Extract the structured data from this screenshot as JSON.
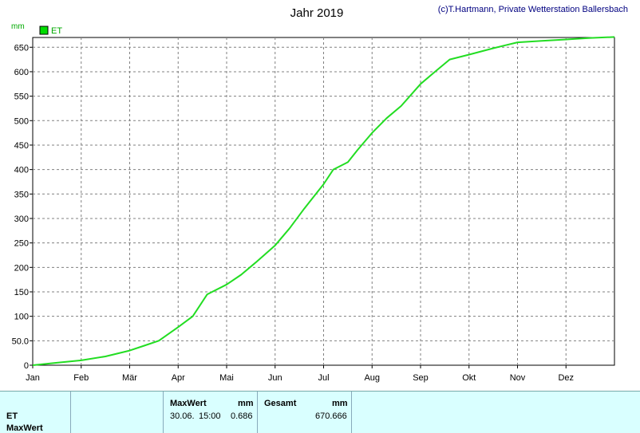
{
  "header": {
    "title": "Jahr 2019",
    "copyright": "(c)T.Hartmann, Private Wetterstation Ballersbach",
    "unit": "mm"
  },
  "legend": {
    "label": "ET",
    "color": "#00dd00"
  },
  "chart_data": {
    "type": "line",
    "title": "Jahr 2019",
    "ylabel": "mm",
    "ylim": [
      0,
      670
    ],
    "yticks": [
      0,
      50,
      100,
      150,
      200,
      250,
      300,
      350,
      400,
      450,
      500,
      550,
      600,
      650
    ],
    "ytick_labels": [
      "0",
      "50.0",
      "100",
      "150",
      "200",
      "250",
      "300",
      "350",
      "400",
      "450",
      "500",
      "550",
      "600",
      "650"
    ],
    "x_month_labels": [
      "Jan",
      "Feb",
      "Mär",
      "Apr",
      "Mai",
      "Jun",
      "Jul",
      "Aug",
      "Sep",
      "Okt",
      "Nov",
      "Dez"
    ],
    "grid": true,
    "legend_position": "top-left",
    "series": [
      {
        "name": "ET",
        "color": "#22dd22",
        "x_months": [
          0,
          0.5,
          1,
          1.5,
          2,
          2.3,
          2.6,
          3,
          3.3,
          3.6,
          4,
          4.3,
          4.6,
          5,
          5.3,
          5.6,
          6,
          6.2,
          6.5,
          6.7,
          7,
          7.3,
          7.6,
          8,
          8.3,
          8.6,
          9,
          9.5,
          10,
          10.5,
          11,
          11.5,
          12
        ],
        "values": [
          0,
          5,
          10,
          18,
          30,
          40,
          50,
          78,
          100,
          145,
          165,
          185,
          210,
          245,
          280,
          320,
          370,
          400,
          415,
          440,
          475,
          505,
          530,
          575,
          600,
          625,
          635,
          648,
          660,
          663,
          666,
          669,
          671
        ]
      }
    ]
  },
  "footer": {
    "row1_label": "ET",
    "row2_label": "MaxWert",
    "max": {
      "header": "MaxWert",
      "unit": "mm",
      "date": "30.06.",
      "time": "15:00",
      "value": "0.686"
    },
    "total": {
      "header": "Gesamt",
      "unit": "mm",
      "value": "670.666"
    }
  }
}
